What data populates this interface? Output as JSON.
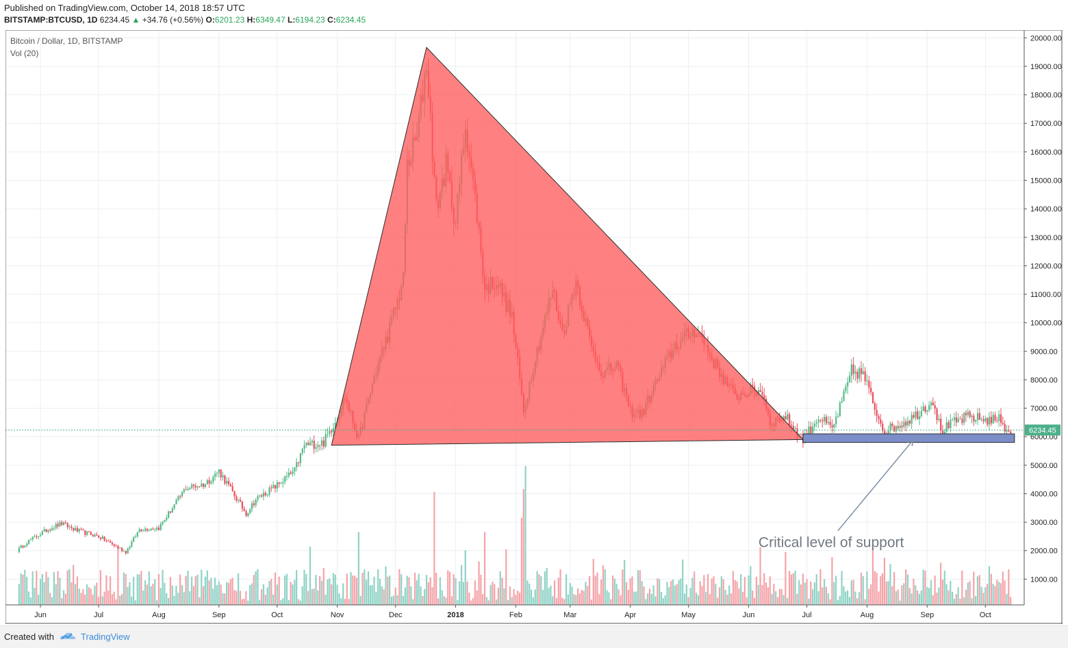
{
  "header": {
    "published": "Published on TradingView.com, October 14, 2018 18:57 UTC",
    "symbol": "BITSTAMP:BTCUSD, 1D",
    "last": "6234.45",
    "change": "+34.76 (+0.56%)",
    "o_label": "O:",
    "o_val": "6201.23",
    "h_label": "H:",
    "h_val": "6349.47",
    "l_label": "L:",
    "l_val": "6194.23",
    "c_label": "C:",
    "c_val": "6234.45"
  },
  "legend": {
    "title": "Bitcoin / Dollar, 1D, BITSTAMP",
    "vol": "Vol (20)"
  },
  "annotation": {
    "text": "Critical level of support"
  },
  "price_label": "6234.45",
  "footer": {
    "created": "Created with",
    "brand": "TradingView"
  },
  "colors": {
    "up": "#26a69a",
    "up_candle": "#53b987",
    "down": "#eb4d5c",
    "triangle_fill": "#ff5c5c",
    "support_box": "#7b8ec8",
    "arrow": "#7f8fa6",
    "grid": "#e9eff3",
    "price_label_bg": "#4cb08a"
  },
  "chart_data": {
    "type": "candlestick",
    "x_ticks": [
      "Jun",
      "Jul",
      "Aug",
      "Sep",
      "Oct",
      "Nov",
      "Dec",
      "2018",
      "Feb",
      "Mar",
      "Apr",
      "May",
      "Jun",
      "Jul",
      "Aug",
      "Sep",
      "Oct"
    ],
    "y_ticks": [
      "1000.00",
      "2000.00",
      "3000.00",
      "4000.00",
      "5000.00",
      "6000.00",
      "7000.00",
      "8000.00",
      "9000.00",
      "10000.00",
      "11000.00",
      "12000.00",
      "13000.00",
      "14000.00",
      "15000.00",
      "16000.00",
      "17000.00",
      "18000.00",
      "19000.00",
      "20000.00"
    ],
    "ylim": [
      0,
      20600
    ],
    "current_price": 6234.45,
    "close_path": [
      [
        "2017-05-20",
        2000
      ],
      [
        "2017-05-25",
        2300
      ],
      [
        "2017-06-06",
        2800
      ],
      [
        "2017-06-12",
        2950
      ],
      [
        "2017-06-20",
        2700
      ],
      [
        "2017-07-01",
        2500
      ],
      [
        "2017-07-15",
        1950
      ],
      [
        "2017-07-22",
        2750
      ],
      [
        "2017-08-01",
        2800
      ],
      [
        "2017-08-15",
        4200
      ],
      [
        "2017-08-25",
        4350
      ],
      [
        "2017-09-01",
        4800
      ],
      [
        "2017-09-15",
        3300
      ],
      [
        "2017-09-20",
        3800
      ],
      [
        "2017-10-01",
        4300
      ],
      [
        "2017-10-10",
        4800
      ],
      [
        "2017-10-15",
        5700
      ],
      [
        "2017-10-25",
        5800
      ],
      [
        "2017-11-01",
        6700
      ],
      [
        "2017-11-05",
        7400
      ],
      [
        "2017-11-12",
        5900
      ],
      [
        "2017-11-20",
        8100
      ],
      [
        "2017-11-28",
        9800
      ],
      [
        "2017-12-05",
        11500
      ],
      [
        "2017-12-07",
        15500
      ],
      [
        "2017-12-12",
        16500
      ],
      [
        "2017-12-17",
        19200
      ],
      [
        "2017-12-22",
        14000
      ],
      [
        "2017-12-27",
        15500
      ],
      [
        "2018-01-01",
        13500
      ],
      [
        "2018-01-06",
        17000
      ],
      [
        "2018-01-12",
        13800
      ],
      [
        "2018-01-16",
        11200
      ],
      [
        "2018-01-22",
        11500
      ],
      [
        "2018-01-30",
        10200
      ],
      [
        "2018-02-05",
        6900
      ],
      [
        "2018-02-10",
        8500
      ],
      [
        "2018-02-20",
        11200
      ],
      [
        "2018-02-25",
        9600
      ],
      [
        "2018-03-04",
        11500
      ],
      [
        "2018-03-12",
        9100
      ],
      [
        "2018-03-18",
        8200
      ],
      [
        "2018-03-25",
        8500
      ],
      [
        "2018-04-01",
        6900
      ],
      [
        "2018-04-07",
        6800
      ],
      [
        "2018-04-15",
        8000
      ],
      [
        "2018-04-24",
        9200
      ],
      [
        "2018-05-05",
        9800
      ],
      [
        "2018-05-15",
        8500
      ],
      [
        "2018-05-25",
        7400
      ],
      [
        "2018-06-01",
        7600
      ],
      [
        "2018-06-08",
        7600
      ],
      [
        "2018-06-12",
        6500
      ],
      [
        "2018-06-20",
        6700
      ],
      [
        "2018-06-29",
        5900
      ],
      [
        "2018-07-07",
        6700
      ],
      [
        "2018-07-14",
        6250
      ],
      [
        "2018-07-20",
        7400
      ],
      [
        "2018-07-24",
        8300
      ],
      [
        "2018-07-30",
        8200
      ],
      [
        "2018-08-05",
        7000
      ],
      [
        "2018-08-10",
        6200
      ],
      [
        "2018-08-17",
        6400
      ],
      [
        "2018-08-25",
        6700
      ],
      [
        "2018-09-04",
        7300
      ],
      [
        "2018-09-08",
        6200
      ],
      [
        "2018-09-15",
        6500
      ],
      [
        "2018-09-22",
        6700
      ],
      [
        "2018-10-01",
        6600
      ],
      [
        "2018-10-10",
        6600
      ],
      [
        "2018-10-11",
        6250
      ],
      [
        "2018-10-14",
        6234
      ]
    ],
    "volume_spikes": [
      [
        "2017-11-12",
        3000
      ],
      [
        "2017-12-21",
        4400
      ],
      [
        "2018-01-16",
        3000
      ],
      [
        "2018-02-04",
        3500
      ],
      [
        "2018-02-06",
        5300
      ],
      [
        "2018-02-05",
        4500
      ]
    ],
    "drawings": [
      {
        "kind": "triangle",
        "points": [
          [
            "2017-10-29",
            5700
          ],
          [
            "2017-12-17",
            19666
          ],
          [
            "2018-06-29",
            5900
          ]
        ]
      },
      {
        "kind": "rectangle",
        "from": [
          "2018-06-29",
          5800
        ],
        "to": [
          "2018-10-16",
          6100
        ],
        "label": "support zone"
      },
      {
        "kind": "arrow",
        "from": [
          "2018-07-17",
          2700
        ],
        "to": [
          "2018-08-25",
          5900
        ]
      }
    ]
  }
}
